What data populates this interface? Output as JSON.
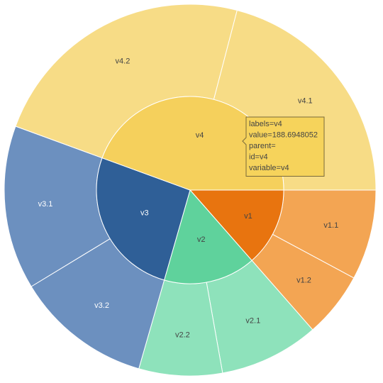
{
  "chart_data": {
    "type": "sunburst",
    "title": "",
    "inner": [
      {
        "id": "v1",
        "label": "v1",
        "value": 57.5,
        "color": "#e8740f",
        "text_color": "#444444"
      },
      {
        "id": "v2",
        "label": "v2",
        "value": 67.6,
        "color": "#5fd29c",
        "text_color": "#444444"
      },
      {
        "id": "v3",
        "label": "v3",
        "value": 111.0,
        "color": "#2f5f97",
        "text_color": "#ffffff"
      },
      {
        "id": "v4",
        "label": "v4",
        "value": 188.6948052,
        "color": "#f5d05c",
        "text_color": "#444444"
      }
    ],
    "outer": [
      {
        "id": "v1.1",
        "label": "v1.1",
        "parent": "v1",
        "value": 33.3,
        "color": "#f3a553",
        "text_color": "#444444"
      },
      {
        "id": "v1.2",
        "label": "v1.2",
        "parent": "v1",
        "value": 24.2,
        "color": "#f3a553",
        "text_color": "#444444"
      },
      {
        "id": "v2.1",
        "label": "v2.1",
        "parent": "v2",
        "value": 36.8,
        "color": "#8ee2bb",
        "text_color": "#444444"
      },
      {
        "id": "v2.2",
        "label": "v2.2",
        "parent": "v2",
        "value": 30.8,
        "color": "#8ee2bb",
        "text_color": "#444444"
      },
      {
        "id": "v3.2",
        "label": "v3.2",
        "parent": "v3",
        "value": 50.4,
        "color": "#6c90bf",
        "text_color": "#ffffff"
      },
      {
        "id": "v3.1",
        "label": "v3.1",
        "parent": "v3",
        "value": 60.6,
        "color": "#6c90bf",
        "text_color": "#ffffff"
      },
      {
        "id": "v4.2",
        "label": "v4.2",
        "parent": "v4",
        "value": 99.8,
        "color": "#f7dc86",
        "text_color": "#444444"
      },
      {
        "id": "v4.1",
        "label": "v4.1",
        "parent": "v4",
        "value": 88.9,
        "color": "#f7dc86",
        "text_color": "#444444"
      }
    ],
    "tooltip": {
      "target": "v4",
      "lines": [
        "labels=v4",
        "value=188.6948052",
        "parent=",
        "id=v4",
        "variable=v4"
      ],
      "color": "#f6d35b"
    }
  }
}
